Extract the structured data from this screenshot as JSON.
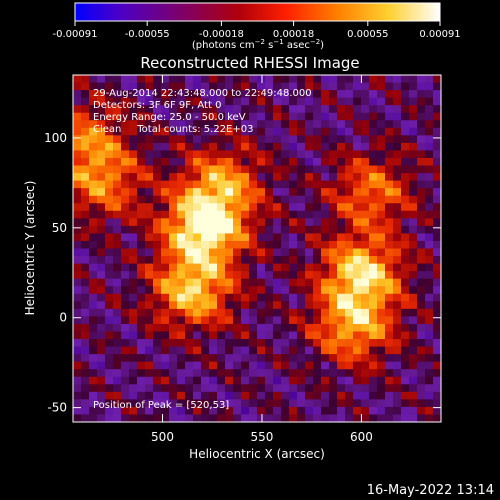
{
  "colorbar": {
    "tick_labels": [
      "-0.00091",
      "-0.00055",
      "-0.00018",
      "0.00018",
      "0.00055",
      "0.00091"
    ],
    "tick_values": [
      -0.00091,
      -0.00055,
      -0.00018,
      0.00018,
      0.00055,
      0.00091
    ],
    "range": [
      -0.00091,
      0.00091
    ],
    "unit_parts": {
      "open": "(photons cm",
      "exp1": "−2",
      "s": " s",
      "exp2": "−1",
      "asec": " asec",
      "exp3": "−2",
      "close": ")"
    },
    "colormap": "RHESSI (blue-purple-red-orange-yellow-white)"
  },
  "chart_data": {
    "type": "heatmap",
    "title": "Reconstructed RHESSI Image",
    "xlabel": "Heliocentric X (arcsec)",
    "ylabel": "Heliocentric Y (arcsec)",
    "xlim": [
      455,
      640
    ],
    "ylim": [
      -58,
      135
    ],
    "x_ticks": [
      500,
      550,
      600
    ],
    "y_ticks": [
      -50,
      0,
      50,
      100
    ],
    "x_tick_labels": [
      "500",
      "550",
      "600"
    ],
    "y_tick_labels": [
      "-50",
      "0",
      "50",
      "100"
    ],
    "sources": [
      {
        "x": 521,
        "y": 50,
        "intensity": 1.0
      },
      {
        "x": 515,
        "y": 15,
        "intensity": 0.8
      },
      {
        "x": 530,
        "y": 75,
        "intensity": 0.6
      },
      {
        "x": 600,
        "y": 25,
        "intensity": 0.85
      },
      {
        "x": 596,
        "y": -5,
        "intensity": 0.7
      },
      {
        "x": 605,
        "y": 70,
        "intensity": 0.55
      },
      {
        "x": 470,
        "y": 75,
        "intensity": 0.55
      },
      {
        "x": 462,
        "y": 100,
        "intensity": 0.5
      }
    ],
    "annotations": [
      "29-Aug-2014 22:43:48.000 to 22:49:48.000",
      "Detectors: 3F 6F 9F, Att 0",
      "Energy Range: 25.0 - 50.0 keV",
      "Clean     Total counts: 5.22E+03",
      "Position of Peak = [520,53]"
    ]
  },
  "footer": {
    "timestamp": "16-May-2022 13:14"
  }
}
